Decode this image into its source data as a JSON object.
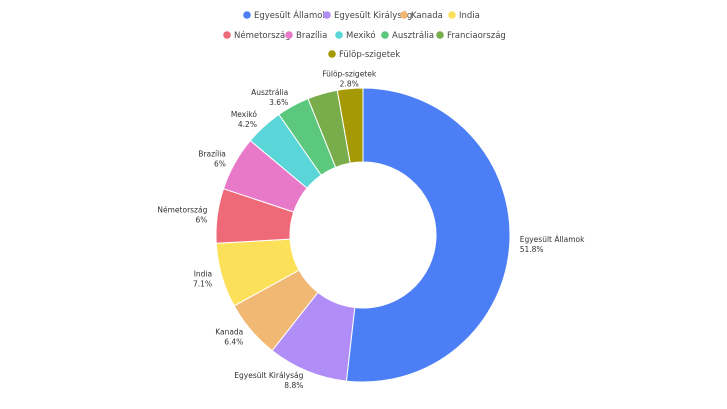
{
  "chart_data": {
    "type": "pie",
    "variant": "donut",
    "legend_position": "top",
    "slices": [
      {
        "label": "Egyesült Államok",
        "value": 51.8,
        "display": "51.8%",
        "color": "#4c7ff5"
      },
      {
        "label": "Egyesült Királyság",
        "value": 8.8,
        "display": "8.8%",
        "color": "#b18ef7"
      },
      {
        "label": "Kanada",
        "value": 6.4,
        "display": "6.4%",
        "color": "#f1b873"
      },
      {
        "label": "India",
        "value": 7.1,
        "display": "7.1%",
        "color": "#fde05a"
      },
      {
        "label": "Németország",
        "value": 6,
        "display": "6%",
        "color": "#ee6a78"
      },
      {
        "label": "Brazília",
        "value": 6,
        "display": "6%",
        "color": "#e878c8"
      },
      {
        "label": "Mexikó",
        "value": 4.2,
        "display": "4.2%",
        "color": "#5ad6d9"
      },
      {
        "label": "Ausztrália",
        "value": 3.6,
        "display": "3.6%",
        "color": "#5bc87e"
      },
      {
        "label": "Franciaország",
        "value": 3.3,
        "display": "",
        "color": "#79ad4c"
      },
      {
        "label": "Fülöp-szigetek",
        "value": 2.8,
        "display": "2.8%",
        "color": "#a59a05"
      }
    ]
  }
}
